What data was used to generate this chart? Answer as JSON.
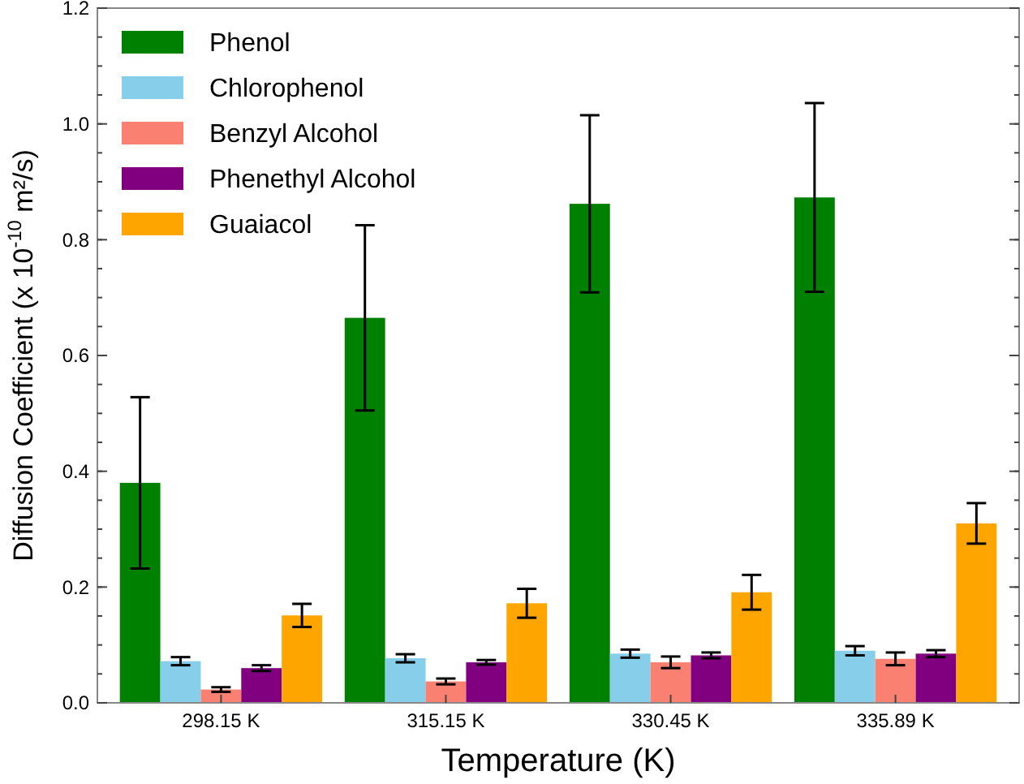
{
  "chart_data": {
    "type": "bar",
    "xlabel": "Temperature (K)",
    "ylabel": "Diffusion Coefficient (x 10$^{-10}$ m²/s)",
    "categories": [
      "298.15 K",
      "315.15 K",
      "330.45 K",
      "335.89 K"
    ],
    "series": [
      {
        "name": "Phenol",
        "color": "#008000",
        "values": [
          0.38,
          0.665,
          0.862,
          0.873
        ],
        "errors": [
          0.148,
          0.16,
          0.153,
          0.163
        ]
      },
      {
        "name": "Chlorophenol",
        "color": "#87ceeb",
        "values": [
          0.072,
          0.077,
          0.085,
          0.09
        ],
        "errors": [
          0.007,
          0.007,
          0.007,
          0.008
        ]
      },
      {
        "name": "Benzyl Alcohol",
        "color": "#fa8072",
        "values": [
          0.023,
          0.037,
          0.07,
          0.076
        ],
        "errors": [
          0.004,
          0.005,
          0.01,
          0.011
        ]
      },
      {
        "name": "Phenethyl Alcohol",
        "color": "#800080",
        "values": [
          0.06,
          0.07,
          0.082,
          0.085
        ],
        "errors": [
          0.005,
          0.004,
          0.005,
          0.006
        ]
      },
      {
        "name": "Guaiacol",
        "color": "#ffa500",
        "values": [
          0.151,
          0.172,
          0.191,
          0.31
        ],
        "errors": [
          0.02,
          0.025,
          0.03,
          0.035
        ]
      }
    ],
    "ylim": [
      0,
      1.2
    ],
    "yticks": [
      {
        "value": 0,
        "label": "0.0"
      },
      0.2,
      0.4,
      0.6,
      0.8,
      {
        "value": 1,
        "label": "1.0"
      },
      {
        "value": 1.2,
        "label": "1.2"
      }
    ],
    "legend": "top left",
    "grid": false
  }
}
